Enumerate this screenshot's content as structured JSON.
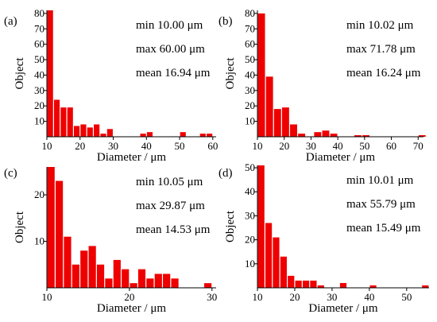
{
  "chart_data": [
    {
      "type": "bar",
      "panel_label": "(a)",
      "xlabel": "Diameter / μm",
      "ylabel": "Object",
      "xlim": [
        10,
        61
      ],
      "ylim": [
        0,
        82
      ],
      "xticks": [
        10,
        20,
        30,
        40,
        50,
        60
      ],
      "yticks": [
        10,
        20,
        30,
        40,
        50,
        60,
        70,
        80
      ],
      "bin_width": 2,
      "bin_starts": [
        10,
        12,
        14,
        16,
        18,
        20,
        22,
        24,
        26,
        28,
        30,
        32,
        34,
        36,
        38,
        40,
        42,
        44,
        46,
        48,
        50,
        52,
        54,
        56,
        58
      ],
      "values": [
        82,
        24,
        19,
        19,
        7,
        8,
        6,
        8,
        2,
        5,
        0,
        0,
        0,
        0,
        2,
        3,
        0,
        0,
        0,
        0,
        3,
        0,
        0,
        2,
        2
      ],
      "stats": [
        "min  10.00 μm",
        "max  60.00 μm",
        "mean  16.94 μm"
      ]
    },
    {
      "type": "bar",
      "panel_label": "(b)",
      "xlabel": "Diameter / μm",
      "ylabel": "Object",
      "xlim": [
        10,
        72
      ],
      "ylim": [
        0,
        82
      ],
      "xticks": [
        10,
        20,
        30,
        40,
        50,
        60,
        70
      ],
      "yticks": [
        10,
        20,
        30,
        40,
        50,
        60,
        70,
        80
      ],
      "bin_width": 3,
      "bin_starts": [
        10,
        13,
        16,
        19,
        22,
        25,
        28,
        31,
        34,
        37,
        40,
        43,
        46,
        49,
        52,
        55,
        58,
        61,
        64,
        67,
        70
      ],
      "values": [
        80,
        39,
        18,
        19,
        8,
        2,
        0,
        3,
        4,
        2,
        0,
        0,
        1,
        1,
        0,
        0,
        0,
        0,
        0,
        0,
        1
      ],
      "stats": [
        "min  10.02 μm",
        "max  71.78 μm",
        "mean  16.24 μm"
      ]
    },
    {
      "type": "bar",
      "panel_label": "(c)",
      "xlabel": "Diameter / μm",
      "ylabel": "Object",
      "xlim": [
        10,
        30.5
      ],
      "ylim": [
        0,
        26
      ],
      "xticks": [
        10,
        20,
        30
      ],
      "yticks": [
        10,
        20
      ],
      "bin_width": 1,
      "bin_starts": [
        10,
        11,
        12,
        13,
        14,
        15,
        16,
        17,
        18,
        19,
        20,
        21,
        22,
        23,
        24,
        25,
        26,
        27,
        28,
        29
      ],
      "values": [
        26,
        23,
        11,
        5,
        8,
        9,
        5,
        2,
        6,
        4,
        1,
        4,
        2,
        3,
        3,
        2,
        0,
        0,
        0,
        1
      ],
      "stats": [
        "min  10.05 μm",
        "max  29.87 μm",
        "mean  14.53 μm"
      ]
    },
    {
      "type": "bar",
      "panel_label": "(d)",
      "xlabel": "Diameter / μm",
      "ylabel": "Object",
      "xlim": [
        10,
        56
      ],
      "ylim": [
        0,
        51
      ],
      "xticks": [
        10,
        20,
        30,
        40,
        50
      ],
      "yticks": [
        10,
        20,
        30,
        40,
        50
      ],
      "bin_width": 2,
      "bin_starts": [
        10,
        12,
        14,
        16,
        18,
        20,
        22,
        24,
        26,
        28,
        30,
        32,
        34,
        36,
        38,
        40,
        42,
        44,
        46,
        48,
        50,
        52,
        54
      ],
      "values": [
        51,
        27,
        21,
        13,
        5,
        3,
        3,
        3,
        1,
        0,
        0,
        2,
        0,
        0,
        0,
        1,
        0,
        0,
        0,
        0,
        0,
        0,
        1
      ],
      "stats": [
        "min  10.01 μm",
        "max  55.79 μm",
        "mean  15.49 μm"
      ]
    }
  ],
  "colors": {
    "bar": "#ee0000",
    "axis": "#000000"
  }
}
